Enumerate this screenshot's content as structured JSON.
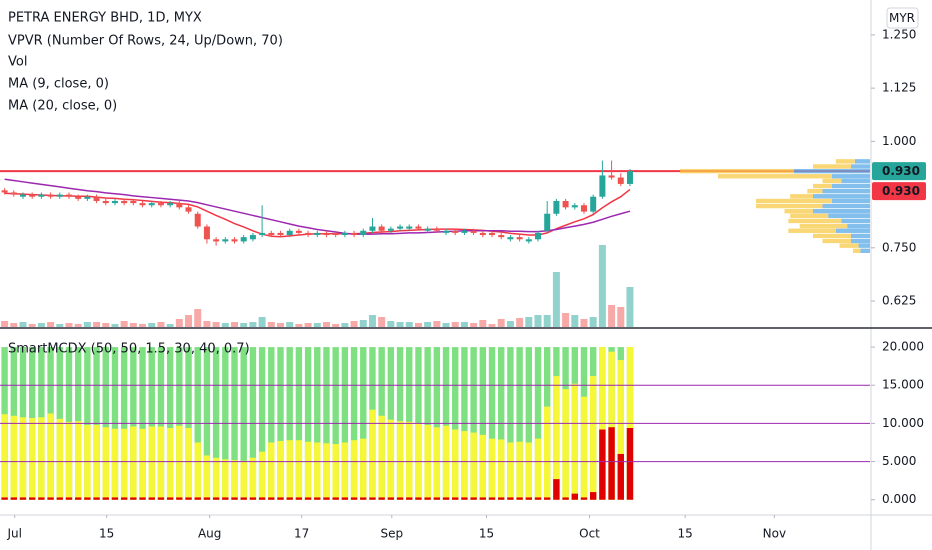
{
  "chart_data": [
    {
      "type": "candlestick",
      "title": "PETRA ENERGY BHD, 1D, MYX",
      "currency": "MYR",
      "indicators": [
        "VPVR (Number Of Rows, 24, Up/Down, 70)",
        "Vol"
      ],
      "up_color": "#26a69a",
      "down_color": "#ef5350",
      "x": [
        0,
        1,
        2,
        3,
        4,
        5,
        6,
        7,
        8,
        9,
        10,
        11,
        12,
        13,
        14,
        15,
        16,
        17,
        18,
        19,
        20,
        21,
        22,
        23,
        24,
        25,
        26,
        27,
        28,
        29,
        30,
        31,
        32,
        33,
        34,
        35,
        36,
        37,
        38,
        39,
        40,
        41,
        42,
        43,
        44,
        45,
        46,
        47,
        48,
        49,
        50,
        51,
        52,
        53,
        54,
        55,
        56,
        57,
        58,
        59,
        60,
        61,
        62,
        63,
        64,
        65,
        66,
        67,
        68
      ],
      "open": [
        0.885,
        0.88,
        0.87,
        0.875,
        0.87,
        0.875,
        0.87,
        0.875,
        0.87,
        0.865,
        0.87,
        0.86,
        0.855,
        0.86,
        0.86,
        0.855,
        0.85,
        0.855,
        0.85,
        0.855,
        0.845,
        0.83,
        0.8,
        0.77,
        0.765,
        0.77,
        0.765,
        0.77,
        0.78,
        0.785,
        0.785,
        0.78,
        0.79,
        0.785,
        0.78,
        0.785,
        0.785,
        0.78,
        0.785,
        0.78,
        0.79,
        0.8,
        0.79,
        0.795,
        0.795,
        0.8,
        0.79,
        0.795,
        0.785,
        0.79,
        0.785,
        0.79,
        0.785,
        0.785,
        0.78,
        0.77,
        0.775,
        0.765,
        0.77,
        0.79,
        0.83,
        0.86,
        0.845,
        0.85,
        0.835,
        0.87,
        0.92,
        0.915,
        0.9
      ],
      "high": [
        0.89,
        0.885,
        0.88,
        0.88,
        0.88,
        0.88,
        0.88,
        0.88,
        0.875,
        0.875,
        0.875,
        0.865,
        0.865,
        0.865,
        0.865,
        0.86,
        0.86,
        0.86,
        0.86,
        0.86,
        0.85,
        0.835,
        0.805,
        0.775,
        0.775,
        0.775,
        0.78,
        0.785,
        0.85,
        0.79,
        0.79,
        0.795,
        0.795,
        0.79,
        0.79,
        0.79,
        0.79,
        0.79,
        0.79,
        0.795,
        0.82,
        0.805,
        0.8,
        0.805,
        0.805,
        0.805,
        0.8,
        0.8,
        0.795,
        0.795,
        0.795,
        0.795,
        0.79,
        0.79,
        0.785,
        0.78,
        0.78,
        0.775,
        0.79,
        0.86,
        0.865,
        0.865,
        0.855,
        0.855,
        0.875,
        0.955,
        0.955,
        0.925,
        0.935
      ],
      "low": [
        0.875,
        0.87,
        0.865,
        0.865,
        0.865,
        0.865,
        0.865,
        0.865,
        0.86,
        0.86,
        0.855,
        0.85,
        0.85,
        0.85,
        0.85,
        0.845,
        0.845,
        0.845,
        0.845,
        0.84,
        0.83,
        0.795,
        0.76,
        0.755,
        0.76,
        0.76,
        0.76,
        0.765,
        0.775,
        0.775,
        0.775,
        0.775,
        0.78,
        0.775,
        0.775,
        0.775,
        0.775,
        0.775,
        0.775,
        0.775,
        0.785,
        0.785,
        0.785,
        0.79,
        0.79,
        0.79,
        0.785,
        0.785,
        0.78,
        0.78,
        0.78,
        0.78,
        0.775,
        0.775,
        0.77,
        0.765,
        0.765,
        0.76,
        0.765,
        0.785,
        0.825,
        0.84,
        0.84,
        0.83,
        0.83,
        0.865,
        0.91,
        0.895,
        0.895
      ],
      "close": [
        0.88,
        0.875,
        0.875,
        0.87,
        0.875,
        0.87,
        0.875,
        0.87,
        0.865,
        0.87,
        0.86,
        0.855,
        0.86,
        0.855,
        0.855,
        0.85,
        0.855,
        0.85,
        0.855,
        0.845,
        0.835,
        0.8,
        0.77,
        0.765,
        0.77,
        0.765,
        0.775,
        0.78,
        0.785,
        0.78,
        0.78,
        0.79,
        0.785,
        0.78,
        0.785,
        0.78,
        0.78,
        0.785,
        0.78,
        0.79,
        0.8,
        0.79,
        0.795,
        0.8,
        0.8,
        0.795,
        0.795,
        0.79,
        0.79,
        0.785,
        0.79,
        0.785,
        0.78,
        0.78,
        0.775,
        0.775,
        0.77,
        0.77,
        0.785,
        0.83,
        0.86,
        0.845,
        0.85,
        0.835,
        0.87,
        0.92,
        0.915,
        0.9,
        0.93
      ],
      "volume": [
        6,
        4,
        5,
        3,
        4,
        5,
        3,
        4,
        3,
        5,
        5,
        4,
        3,
        6,
        4,
        3,
        4,
        5,
        3,
        8,
        12,
        18,
        6,
        5,
        4,
        5,
        4,
        5,
        10,
        5,
        4,
        5,
        3,
        4,
        4,
        5,
        3,
        4,
        6,
        7,
        12,
        10,
        6,
        5,
        5,
        4,
        5,
        6,
        4,
        5,
        5,
        4,
        7,
        3,
        8,
        6,
        9,
        10,
        12,
        12,
        55,
        14,
        12,
        8,
        10,
        82,
        22,
        20,
        40
      ],
      "series": [
        {
          "name": "MA (9, close, 0)",
          "color": "#f23645",
          "values": [
            0.878,
            0.877,
            0.876,
            0.875,
            0.874,
            0.873,
            0.872,
            0.872,
            0.871,
            0.871,
            0.869,
            0.867,
            0.866,
            0.864,
            0.863,
            0.861,
            0.859,
            0.857,
            0.856,
            0.854,
            0.852,
            0.846,
            0.836,
            0.826,
            0.817,
            0.807,
            0.799,
            0.79,
            0.782,
            0.777,
            0.776,
            0.778,
            0.78,
            0.782,
            0.783,
            0.783,
            0.783,
            0.783,
            0.783,
            0.784,
            0.786,
            0.787,
            0.788,
            0.79,
            0.791,
            0.792,
            0.793,
            0.794,
            0.794,
            0.794,
            0.793,
            0.792,
            0.791,
            0.789,
            0.787,
            0.784,
            0.782,
            0.78,
            0.78,
            0.785,
            0.795,
            0.803,
            0.811,
            0.818,
            0.828,
            0.844,
            0.858,
            0.87,
            0.887
          ]
        },
        {
          "name": "MA (20, close, 0)",
          "color": "#9c27b0",
          "values": [
            0.911,
            0.908,
            0.905,
            0.902,
            0.899,
            0.896,
            0.893,
            0.89,
            0.887,
            0.884,
            0.882,
            0.879,
            0.877,
            0.875,
            0.872,
            0.87,
            0.868,
            0.866,
            0.864,
            0.862,
            0.86,
            0.856,
            0.851,
            0.846,
            0.841,
            0.836,
            0.831,
            0.826,
            0.821,
            0.816,
            0.811,
            0.806,
            0.801,
            0.797,
            0.793,
            0.79,
            0.787,
            0.784,
            0.782,
            0.782,
            0.782,
            0.783,
            0.783,
            0.784,
            0.785,
            0.785,
            0.786,
            0.787,
            0.788,
            0.789,
            0.79,
            0.79,
            0.79,
            0.79,
            0.79,
            0.789,
            0.789,
            0.788,
            0.788,
            0.79,
            0.793,
            0.797,
            0.801,
            0.805,
            0.81,
            0.817,
            0.824,
            0.83,
            0.836
          ]
        }
      ],
      "vpvr": {
        "up_color": "#5aa9e6",
        "down_color": "#f7c948",
        "rows": [
          {
            "price": 0.953,
            "up": 8,
            "down": 10
          },
          {
            "price": 0.941,
            "up": 10,
            "down": 20
          },
          {
            "price": 0.93,
            "up": 40,
            "down": 60
          },
          {
            "price": 0.918,
            "up": 20,
            "down": 60
          },
          {
            "price": 0.907,
            "up": 15,
            "down": 10
          },
          {
            "price": 0.895,
            "up": 20,
            "down": 10
          },
          {
            "price": 0.883,
            "up": 25,
            "down": 8
          },
          {
            "price": 0.871,
            "up": 30,
            "down": 12
          },
          {
            "price": 0.86,
            "up": 20,
            "down": 40
          },
          {
            "price": 0.848,
            "up": 25,
            "down": 35
          },
          {
            "price": 0.836,
            "up": 30,
            "down": 15
          },
          {
            "price": 0.825,
            "up": 22,
            "down": 20
          },
          {
            "price": 0.813,
            "up": 15,
            "down": 28
          },
          {
            "price": 0.801,
            "up": 12,
            "down": 25
          },
          {
            "price": 0.79,
            "up": 18,
            "down": 25
          },
          {
            "price": 0.778,
            "up": 10,
            "down": 20
          },
          {
            "price": 0.766,
            "up": 10,
            "down": 15
          },
          {
            "price": 0.755,
            "up": 6,
            "down": 10
          },
          {
            "price": 0.743,
            "up": 5,
            "down": 4
          }
        ]
      },
      "price_line": {
        "value": 0.93,
        "label": "0.930"
      },
      "price_line_color": "#f23645",
      "last_close": {
        "value": 0.93,
        "label": "0.930"
      },
      "ylim": [
        0.564,
        1.332
      ],
      "yticks": [
        {
          "value": 1.25,
          "label": "1.250"
        },
        {
          "value": 1.125,
          "label": "1.125"
        },
        {
          "value": 1.0,
          "label": "1.000"
        },
        {
          "value": 0.75,
          "label": "0.750"
        },
        {
          "value": 0.625,
          "label": "0.625"
        }
      ],
      "xlim": [
        -0.5,
        94.1
      ]
    },
    {
      "type": "bar",
      "title": "SmartMCDX (50, 50, 1.5, 30, 40, 0.7)",
      "x": [
        0,
        1,
        2,
        3,
        4,
        5,
        6,
        7,
        8,
        9,
        10,
        11,
        12,
        13,
        14,
        15,
        16,
        17,
        18,
        19,
        20,
        21,
        22,
        23,
        24,
        25,
        26,
        27,
        28,
        29,
        30,
        31,
        32,
        33,
        34,
        35,
        36,
        37,
        38,
        39,
        40,
        41,
        42,
        43,
        44,
        45,
        46,
        47,
        48,
        49,
        50,
        51,
        52,
        53,
        54,
        55,
        56,
        57,
        58,
        59,
        60,
        61,
        62,
        63,
        64,
        65,
        66,
        67,
        68
      ],
      "series": [
        {
          "color": "#7ee081",
          "values": [
            20,
            20,
            20,
            20,
            20,
            20,
            20,
            20,
            20,
            20,
            20,
            20,
            20,
            20,
            20,
            20,
            20,
            20,
            20,
            20,
            20,
            20,
            20,
            20,
            20,
            20,
            20,
            20,
            20,
            20,
            20,
            20,
            20,
            20,
            20,
            20,
            20,
            20,
            20,
            20,
            20,
            20,
            20,
            20,
            20,
            20,
            20,
            20,
            20,
            20,
            20,
            20,
            20,
            20,
            20,
            20,
            20,
            20,
            20,
            20,
            20,
            20,
            20,
            20,
            20,
            20,
            20,
            20,
            20
          ]
        },
        {
          "color": "#f7f73a",
          "values": [
            11.2,
            11,
            10.8,
            10.7,
            10.8,
            11.3,
            10.6,
            10.2,
            10.3,
            9.8,
            9.8,
            9.5,
            9.3,
            9.3,
            9.6,
            9.3,
            9.6,
            9.6,
            9.4,
            9.7,
            9.4,
            7.5,
            5.8,
            5.5,
            5.3,
            5.2,
            5.1,
            5.5,
            6.3,
            7.5,
            7.7,
            7.8,
            7.8,
            7.6,
            7.5,
            7.4,
            7.3,
            7.5,
            7.8,
            8,
            11.8,
            11,
            10.5,
            10.3,
            10.2,
            10,
            9.8,
            9.5,
            9.7,
            9.2,
            9,
            8.8,
            8.5,
            8,
            7.9,
            7.5,
            7.6,
            7.5,
            8,
            12.2,
            16.2,
            14.5,
            15.2,
            13.5,
            16.2,
            20,
            19.4,
            18.3,
            20
          ]
        },
        {
          "color": "#e00000",
          "values": [
            0.3,
            0.3,
            0.3,
            0.3,
            0.3,
            0.3,
            0.3,
            0.3,
            0.3,
            0.3,
            0.3,
            0.3,
            0.3,
            0.3,
            0.3,
            0.3,
            0.3,
            0.3,
            0.3,
            0.3,
            0.3,
            0.3,
            0.3,
            0.3,
            0.3,
            0.3,
            0.3,
            0.3,
            0.3,
            0.3,
            0.3,
            0.3,
            0.3,
            0.3,
            0.3,
            0.3,
            0.3,
            0.3,
            0.3,
            0.3,
            0.3,
            0.3,
            0.3,
            0.3,
            0.3,
            0.3,
            0.3,
            0.3,
            0.3,
            0.3,
            0.3,
            0.3,
            0.3,
            0.3,
            0.3,
            0.3,
            0.3,
            0.3,
            0.3,
            0.3,
            2.7,
            0.3,
            0.8,
            0.3,
            1,
            9.2,
            9.5,
            6,
            9.4
          ]
        }
      ],
      "hlines": [
        5,
        10,
        15
      ],
      "hline_color": "#9c27b0",
      "ylim": [
        -2,
        22.5
      ],
      "yticks": [
        {
          "value": 20,
          "label": "20.000"
        },
        {
          "value": 15,
          "label": "15.000"
        },
        {
          "value": 10,
          "label": "10.000"
        },
        {
          "value": 5,
          "label": "5.000"
        },
        {
          "value": 0,
          "label": "0.000"
        }
      ],
      "xlim": [
        -0.5,
        94.1
      ],
      "xticks": [
        {
          "value": 1.1,
          "label": "Jul"
        },
        {
          "value": 11.1,
          "label": "15"
        },
        {
          "value": 22.3,
          "label": "Aug"
        },
        {
          "value": 32.3,
          "label": "17"
        },
        {
          "value": 42.1,
          "label": "Sep"
        },
        {
          "value": 52.4,
          "label": "15"
        },
        {
          "value": 63.6,
          "label": "Oct"
        },
        {
          "value": 74,
          "label": "15"
        },
        {
          "value": 83.7,
          "label": "Nov"
        }
      ]
    }
  ]
}
